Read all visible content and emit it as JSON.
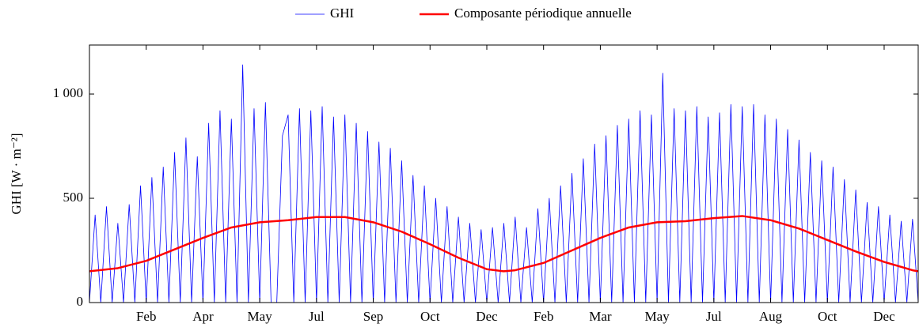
{
  "chart_data": {
    "type": "line",
    "ylabel": "GHI [W · m⁻²]",
    "xlim": [
      0,
      730
    ],
    "xticks": [
      {
        "value": 50,
        "label": "Feb"
      },
      {
        "value": 100,
        "label": "Apr"
      },
      {
        "value": 150,
        "label": "May"
      },
      {
        "value": 200,
        "label": "Jul"
      },
      {
        "value": 250,
        "label": "Sep"
      },
      {
        "value": 300,
        "label": "Oct"
      },
      {
        "value": 350,
        "label": "Dec"
      },
      {
        "value": 400,
        "label": "Feb"
      },
      {
        "value": 450,
        "label": "Mar"
      },
      {
        "value": 500,
        "label": "May"
      },
      {
        "value": 550,
        "label": "Jul"
      },
      {
        "value": 600,
        "label": "Aug"
      },
      {
        "value": 650,
        "label": "Oct"
      },
      {
        "value": 700,
        "label": "Dec"
      }
    ],
    "ylim": [
      0,
      1235
    ],
    "yticks": [
      0,
      500,
      {
        "value": 1000,
        "label": "1 000"
      }
    ],
    "legend": "top",
    "series": [
      {
        "name": "GHI",
        "color": "#0000ff",
        "width": 0.8,
        "x": [
          0,
          5,
          10,
          15,
          20,
          25,
          30,
          35,
          40,
          45,
          50,
          55,
          60,
          65,
          70,
          75,
          80,
          85,
          90,
          95,
          100,
          105,
          110,
          115,
          120,
          125,
          130,
          135,
          140,
          145,
          150,
          155,
          160,
          165,
          170,
          175,
          180,
          185,
          190,
          195,
          200,
          205,
          210,
          215,
          220,
          225,
          230,
          235,
          240,
          245,
          250,
          255,
          260,
          265,
          270,
          275,
          280,
          285,
          290,
          295,
          300,
          305,
          310,
          315,
          320,
          325,
          330,
          335,
          340,
          345,
          350,
          355,
          360,
          365,
          370,
          375,
          380,
          385,
          390,
          395,
          400,
          405,
          410,
          415,
          420,
          425,
          430,
          435,
          440,
          445,
          450,
          455,
          460,
          465,
          470,
          475,
          480,
          485,
          490,
          495,
          500,
          505,
          510,
          515,
          520,
          525,
          530,
          535,
          540,
          545,
          550,
          555,
          560,
          565,
          570,
          575,
          580,
          585,
          590,
          595,
          600,
          605,
          610,
          615,
          620,
          625,
          630,
          635,
          640,
          645,
          650,
          655,
          660,
          665,
          670,
          675,
          680,
          685,
          690,
          695,
          700,
          705,
          710,
          715,
          720,
          725,
          730
        ],
        "values": [
          0,
          420,
          0,
          460,
          0,
          380,
          0,
          470,
          0,
          560,
          0,
          600,
          0,
          650,
          0,
          720,
          0,
          790,
          0,
          700,
          0,
          860,
          0,
          920,
          0,
          880,
          0,
          1140,
          0,
          930,
          0,
          960,
          0,
          0,
          800,
          900,
          0,
          930,
          0,
          920,
          0,
          940,
          0,
          890,
          0,
          900,
          0,
          860,
          0,
          820,
          0,
          770,
          0,
          740,
          0,
          680,
          0,
          610,
          0,
          560,
          0,
          500,
          0,
          460,
          0,
          410,
          0,
          380,
          0,
          350,
          0,
          360,
          0,
          380,
          0,
          410,
          0,
          360,
          0,
          450,
          0,
          500,
          0,
          560,
          0,
          620,
          0,
          690,
          0,
          760,
          0,
          800,
          0,
          850,
          0,
          880,
          0,
          920,
          0,
          900,
          0,
          1100,
          0,
          930,
          0,
          920,
          0,
          940,
          0,
          890,
          0,
          910,
          0,
          950,
          0,
          940,
          0,
          950,
          0,
          900,
          0,
          880,
          0,
          830,
          0,
          780,
          0,
          720,
          0,
          680,
          0,
          650,
          0,
          590,
          0,
          540,
          0,
          480,
          0,
          460,
          0,
          420,
          0,
          390,
          0,
          400,
          0
        ]
      },
      {
        "name": "Composante périodique annuelle",
        "color": "#ff0000",
        "width": 2.5,
        "x": [
          0,
          25,
          50,
          75,
          100,
          125,
          150,
          175,
          200,
          225,
          250,
          275,
          300,
          325,
          350,
          365,
          375,
          400,
          425,
          450,
          475,
          500,
          525,
          550,
          575,
          600,
          625,
          650,
          675,
          700,
          725,
          730
        ],
        "values": [
          150,
          165,
          200,
          255,
          310,
          360,
          385,
          395,
          410,
          410,
          385,
          340,
          280,
          215,
          160,
          150,
          155,
          190,
          250,
          310,
          360,
          385,
          390,
          405,
          415,
          395,
          355,
          300,
          245,
          195,
          155,
          150
        ]
      }
    ]
  }
}
